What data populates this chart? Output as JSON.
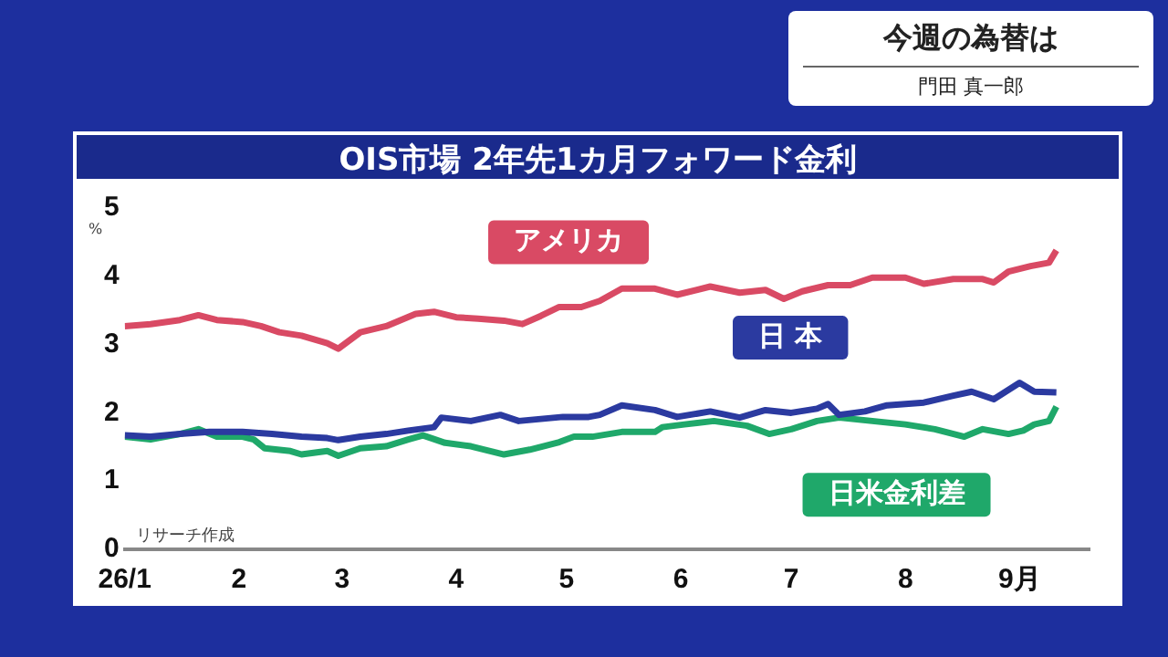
{
  "chart_data": {
    "type": "line",
    "title": "OIS市場 2年先1カ月フォワード金利",
    "ylabel": "%",
    "annotations": [
      "今週の為替は",
      "門田 真一郎",
      "リサーチ作成"
    ],
    "xlim": [
      "--01-01",
      "--09-20"
    ],
    "xticks": [
      {
        "value": "--01-01",
        "label": "26/1"
      },
      {
        "value": "--02-01",
        "label": "2"
      },
      {
        "value": "--03-01",
        "label": "3"
      },
      {
        "value": "--04-01",
        "label": "4"
      },
      {
        "value": "--05-01",
        "label": "5"
      },
      {
        "value": "--06-01",
        "label": "6"
      },
      {
        "value": "--07-01",
        "label": "7"
      },
      {
        "value": "--08-01",
        "label": "8"
      },
      {
        "value": "--09-01",
        "label": "9月"
      }
    ],
    "ylim": [
      0,
      5
    ],
    "yticks": [
      0,
      1,
      2,
      3,
      4,
      5
    ],
    "legend": false,
    "marker": "none",
    "line_style": "solid",
    "series": [
      {
        "name": "アメリカ",
        "color": "#d94a64",
        "x": [
          "--01-01",
          "--01-08",
          "--01-16",
          "--01-21",
          "--01-26",
          "--02-02",
          "--02-07",
          "--02-12",
          "--02-18",
          "--02-25",
          "--02-28",
          "--03-06",
          "--03-13",
          "--03-21",
          "--03-26",
          "--04-01",
          "--04-07",
          "--04-14",
          "--04-19",
          "--04-24",
          "--04-29",
          "--05-05",
          "--05-10",
          "--05-16",
          "--05-25",
          "--05-31",
          "--06-09",
          "--06-17",
          "--06-24",
          "--06-29",
          "--07-04",
          "--07-11",
          "--07-17",
          "--07-23",
          "--08-01",
          "--08-06",
          "--08-14",
          "--08-22",
          "--08-25",
          "--08-29",
          "--09-04",
          "--09-09",
          "--09-11"
        ],
        "values": [
          3.27,
          3.3,
          3.36,
          3.43,
          3.36,
          3.33,
          3.27,
          3.18,
          3.13,
          3.02,
          2.94,
          3.18,
          3.27,
          3.45,
          3.48,
          3.4,
          3.38,
          3.35,
          3.3,
          3.42,
          3.55,
          3.55,
          3.64,
          3.82,
          3.82,
          3.73,
          3.85,
          3.76,
          3.8,
          3.67,
          3.78,
          3.87,
          3.87,
          3.98,
          3.98,
          3.89,
          3.96,
          3.96,
          3.91,
          4.07,
          4.15,
          4.2,
          4.38
        ]
      },
      {
        "name": "日 本",
        "color": "#2b3aa0",
        "x": [
          "--01-01",
          "--01-08",
          "--01-16",
          "--01-24",
          "--02-02",
          "--02-10",
          "--02-18",
          "--02-25",
          "--02-28",
          "--03-06",
          "--03-13",
          "--03-19",
          "--03-26",
          "--03-28",
          "--04-05",
          "--04-13",
          "--04-18",
          "--04-24",
          "--04-30",
          "--05-07",
          "--05-10",
          "--05-16",
          "--05-25",
          "--05-31",
          "--06-09",
          "--06-17",
          "--06-24",
          "--07-01",
          "--07-08",
          "--07-11",
          "--07-14",
          "--07-21",
          "--07-27",
          "--08-06",
          "--08-14",
          "--08-19",
          "--08-25",
          "--09-01",
          "--09-05",
          "--09-11"
        ],
        "values": [
          1.67,
          1.65,
          1.69,
          1.72,
          1.72,
          1.69,
          1.65,
          1.63,
          1.6,
          1.65,
          1.69,
          1.74,
          1.79,
          1.93,
          1.88,
          1.97,
          1.88,
          1.91,
          1.94,
          1.94,
          1.97,
          2.11,
          2.04,
          1.94,
          2.02,
          1.93,
          2.04,
          2.0,
          2.06,
          2.13,
          1.97,
          2.02,
          2.11,
          2.15,
          2.25,
          2.31,
          2.2,
          2.44,
          2.31,
          2.3
        ]
      },
      {
        "name": "日米金利差",
        "color": "#1fa86a",
        "x": [
          "--01-01",
          "--01-08",
          "--01-16",
          "--01-21",
          "--01-26",
          "--02-02",
          "--02-05",
          "--02-08",
          "--02-15",
          "--02-18",
          "--02-25",
          "--02-28",
          "--03-06",
          "--03-13",
          "--03-19",
          "--03-23",
          "--03-29",
          "--04-05",
          "--04-14",
          "--04-21",
          "--04-29",
          "--05-03",
          "--05-08",
          "--05-16",
          "--05-25",
          "--05-27",
          "--06-02",
          "--06-10",
          "--06-19",
          "--06-25",
          "--07-01",
          "--07-08",
          "--07-14",
          "--07-23",
          "--08-01",
          "--08-09",
          "--08-17",
          "--08-22",
          "--08-29",
          "--09-02",
          "--09-05",
          "--09-09",
          "--09-11"
        ],
        "values": [
          1.65,
          1.61,
          1.69,
          1.76,
          1.65,
          1.65,
          1.61,
          1.48,
          1.44,
          1.39,
          1.44,
          1.37,
          1.48,
          1.51,
          1.61,
          1.67,
          1.56,
          1.51,
          1.39,
          1.46,
          1.57,
          1.65,
          1.65,
          1.72,
          1.72,
          1.79,
          1.83,
          1.88,
          1.81,
          1.69,
          1.76,
          1.88,
          1.93,
          1.88,
          1.83,
          1.76,
          1.65,
          1.76,
          1.69,
          1.74,
          1.83,
          1.88,
          2.09
        ]
      }
    ]
  }
}
